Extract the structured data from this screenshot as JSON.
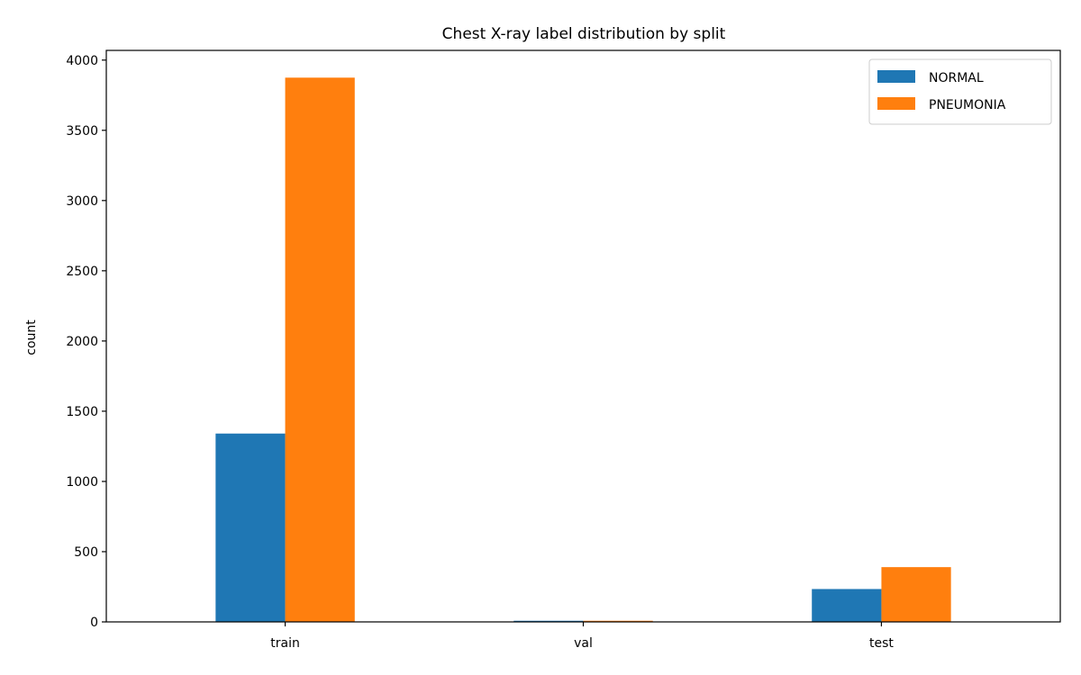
{
  "chart_data": {
    "type": "bar",
    "title": "Chest X-ray label distribution by split",
    "xlabel": "",
    "ylabel": "count",
    "categories": [
      "train",
      "val",
      "test"
    ],
    "series": [
      {
        "name": "NORMAL",
        "color": "#1f77b4",
        "values": [
          1341,
          8,
          234
        ]
      },
      {
        "name": "PNEUMONIA",
        "color": "#ff7f0e",
        "values": [
          3875,
          8,
          390
        ]
      }
    ],
    "ylim": [
      0,
      4069
    ],
    "yticks": [
      0,
      500,
      1000,
      1500,
      2000,
      2500,
      3000,
      3500,
      4000
    ],
    "legend_position": "top-right",
    "grid": false
  }
}
